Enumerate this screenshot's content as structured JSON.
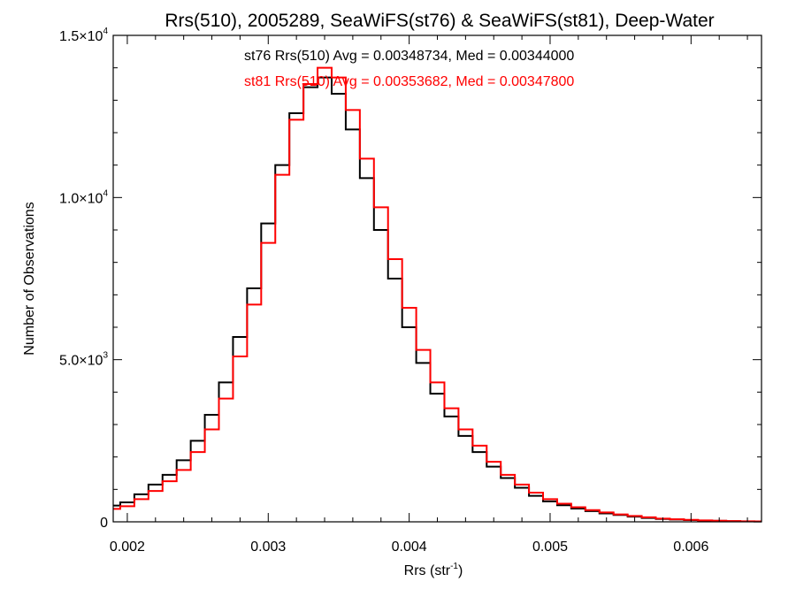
{
  "chart_data": {
    "type": "line",
    "step": true,
    "title": "Rrs(510), 2005289, SeaWiFS(st76) & SeaWiFS(st81), Deep-Water",
    "xlabel": {
      "base": "Rrs (str",
      "sup": "-1",
      "end": ")"
    },
    "ylabel": "Number of Observations",
    "xlim": [
      0.0019,
      0.0065
    ],
    "ylim": [
      0,
      15000
    ],
    "x_ticks": [
      {
        "value": 0.002,
        "label": "0.002"
      },
      {
        "value": 0.003,
        "label": "0.003"
      },
      {
        "value": 0.004,
        "label": "0.004"
      },
      {
        "value": 0.005,
        "label": "0.005"
      },
      {
        "value": 0.006,
        "label": "0.006"
      }
    ],
    "y_ticks": [
      {
        "value": 0,
        "mant": "0",
        "sup": ""
      },
      {
        "value": 5000,
        "mant": "5.0×10",
        "sup": "3"
      },
      {
        "value": 10000,
        "mant": "1.0×10",
        "sup": "4"
      },
      {
        "value": 15000,
        "mant": "1.5×10",
        "sup": "4"
      }
    ],
    "grid": false,
    "annotations": [
      {
        "series": "st76",
        "text": "st76 Rrs(510) Avg = 0.00348734, Med = 0.00344000"
      },
      {
        "series": "st81",
        "text": "st81 Rrs(510) Avg = 0.00353682, Med = 0.00347800"
      }
    ],
    "series": [
      {
        "name": "st76",
        "color": "#000000",
        "x": [
          0.0019,
          0.002,
          0.0021,
          0.0022,
          0.0023,
          0.0024,
          0.0025,
          0.0026,
          0.0027,
          0.0028,
          0.0029,
          0.003,
          0.0031,
          0.0032,
          0.0033,
          0.0034,
          0.0035,
          0.0036,
          0.0037,
          0.0038,
          0.0039,
          0.004,
          0.0041,
          0.0042,
          0.0043,
          0.0044,
          0.0045,
          0.0046,
          0.0047,
          0.0048,
          0.0049,
          0.005,
          0.0051,
          0.0052,
          0.0053,
          0.0054,
          0.0055,
          0.0056,
          0.0057,
          0.0058,
          0.0059,
          0.006,
          0.0061,
          0.0062,
          0.0063,
          0.0064,
          0.0065
        ],
        "y": [
          500,
          600,
          850,
          1150,
          1450,
          1900,
          2500,
          3300,
          4300,
          5700,
          7200,
          9200,
          11000,
          12600,
          13400,
          13700,
          13200,
          12100,
          10600,
          9000,
          7500,
          6000,
          4900,
          3950,
          3250,
          2650,
          2150,
          1700,
          1350,
          1050,
          800,
          630,
          510,
          410,
          330,
          260,
          210,
          160,
          120,
          90,
          70,
          55,
          40,
          30,
          20,
          15,
          10
        ]
      },
      {
        "name": "st81",
        "color": "#ff0000",
        "x": [
          0.0019,
          0.002,
          0.0021,
          0.0022,
          0.0023,
          0.0024,
          0.0025,
          0.0026,
          0.0027,
          0.0028,
          0.0029,
          0.003,
          0.0031,
          0.0032,
          0.0033,
          0.0034,
          0.0035,
          0.0036,
          0.0037,
          0.0038,
          0.0039,
          0.004,
          0.0041,
          0.0042,
          0.0043,
          0.0044,
          0.0045,
          0.0046,
          0.0047,
          0.0048,
          0.0049,
          0.005,
          0.0051,
          0.0052,
          0.0053,
          0.0054,
          0.0055,
          0.0056,
          0.0057,
          0.0058,
          0.0059,
          0.006,
          0.0061,
          0.0062,
          0.0063,
          0.0064,
          0.0065
        ],
        "y": [
          400,
          480,
          700,
          950,
          1250,
          1600,
          2150,
          2850,
          3800,
          5100,
          6700,
          8600,
          10700,
          12400,
          13500,
          14000,
          13700,
          12700,
          11200,
          9700,
          8100,
          6600,
          5300,
          4300,
          3500,
          2850,
          2350,
          1850,
          1450,
          1150,
          900,
          700,
          560,
          450,
          360,
          290,
          230,
          180,
          140,
          100,
          80,
          60,
          45,
          35,
          25,
          18,
          12
        ]
      }
    ]
  }
}
